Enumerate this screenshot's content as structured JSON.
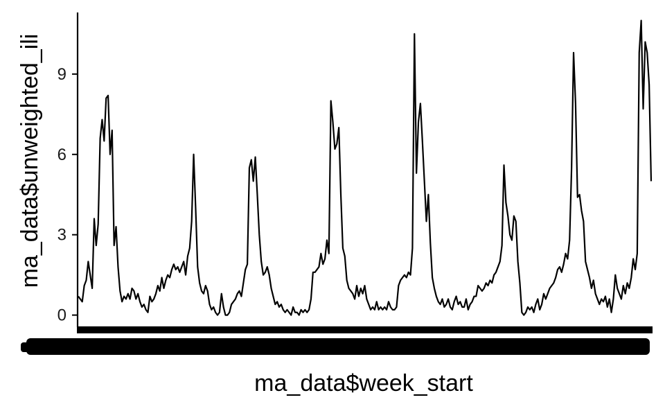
{
  "chart_data": {
    "type": "line",
    "title": "",
    "xlabel": "ma_data$week_start",
    "ylabel": "ma_data$unweighted_ili",
    "ylim": [
      -0.45,
      11.3
    ],
    "yticks": [
      0,
      3,
      6,
      9
    ],
    "grid": false,
    "legend": "none",
    "x_tick_labels_note": "x-axis tick labels are densely overprinted and illegible",
    "series": [
      {
        "color": "#000000",
        "values": [
          0.7,
          0.6,
          0.5,
          1.1,
          1.3,
          2.0,
          1.5,
          1.0,
          3.6,
          2.6,
          3.4,
          6.6,
          7.3,
          6.5,
          8.1,
          8.2,
          6.0,
          6.9,
          2.6,
          3.3,
          1.8,
          0.9,
          0.5,
          0.7,
          0.6,
          0.8,
          0.6,
          1.0,
          0.9,
          0.6,
          0.8,
          0.5,
          0.3,
          0.4,
          0.2,
          0.1,
          0.7,
          0.5,
          0.6,
          0.8,
          1.1,
          0.9,
          1.4,
          1.0,
          1.3,
          1.5,
          1.4,
          1.7,
          1.9,
          1.7,
          1.8,
          1.6,
          1.8,
          2.0,
          1.5,
          2.2,
          2.5,
          3.5,
          6.0,
          4.0,
          1.8,
          1.2,
          0.9,
          0.8,
          1.1,
          0.9,
          0.4,
          0.2,
          0.3,
          0.1,
          0.0,
          0.1,
          0.8,
          0.3,
          0.0,
          0.0,
          0.1,
          0.4,
          0.5,
          0.6,
          0.8,
          0.9,
          0.7,
          1.2,
          1.7,
          1.9,
          5.5,
          5.8,
          5.0,
          5.9,
          4.5,
          3.0,
          2.0,
          1.5,
          1.6,
          1.8,
          1.5,
          1.0,
          0.7,
          0.4,
          0.5,
          0.3,
          0.4,
          0.2,
          0.1,
          0.2,
          0.1,
          0.0,
          0.3,
          0.1,
          0.1,
          0.0,
          0.2,
          0.1,
          0.2,
          0.1,
          0.2,
          0.6,
          1.6,
          1.6,
          1.7,
          1.8,
          2.3,
          1.9,
          2.1,
          2.8,
          2.3,
          8.0,
          7.2,
          6.2,
          6.4,
          7.0,
          4.5,
          2.5,
          2.2,
          1.3,
          1.0,
          0.9,
          0.8,
          0.6,
          1.1,
          0.7,
          1.0,
          0.8,
          1.1,
          0.6,
          0.4,
          0.2,
          0.3,
          0.2,
          0.5,
          0.2,
          0.3,
          0.2,
          0.3,
          0.2,
          0.5,
          0.3,
          0.2,
          0.2,
          0.3,
          1.1,
          1.3,
          1.4,
          1.5,
          1.4,
          1.6,
          1.5,
          2.5,
          10.5,
          5.3,
          7.2,
          7.9,
          6.5,
          5.0,
          3.5,
          4.5,
          2.7,
          1.4,
          1.0,
          0.7,
          0.5,
          0.4,
          0.6,
          0.3,
          0.4,
          0.6,
          0.3,
          0.2,
          0.5,
          0.7,
          0.4,
          0.5,
          0.3,
          0.3,
          0.6,
          0.2,
          0.4,
          0.5,
          0.7,
          0.7,
          1.1,
          1.0,
          0.9,
          1.0,
          1.2,
          1.1,
          1.3,
          1.2,
          1.5,
          1.6,
          1.8,
          2.0,
          2.6,
          5.6,
          4.2,
          3.7,
          3.0,
          2.8,
          3.7,
          3.5,
          2.0,
          1.2,
          0.1,
          0.0,
          0.1,
          0.3,
          0.2,
          0.3,
          0.1,
          0.4,
          0.6,
          0.2,
          0.4,
          0.8,
          0.6,
          0.8,
          1.0,
          1.1,
          1.2,
          1.4,
          1.7,
          1.8,
          1.6,
          1.9,
          2.3,
          2.1,
          2.8,
          5.5,
          9.8,
          7.9,
          4.4,
          4.5,
          3.9,
          3.5,
          2.0,
          1.7,
          1.4,
          1.0,
          1.3,
          0.8,
          0.6,
          0.4,
          0.6,
          0.5,
          0.7,
          0.3,
          0.6,
          0.1,
          0.6,
          1.5,
          1.0,
          0.8,
          0.6,
          1.1,
          0.8,
          1.2,
          1.0,
          1.4,
          2.1,
          1.7,
          2.3,
          9.8,
          11.0,
          7.7,
          10.2,
          9.8,
          8.6,
          5.0
        ]
      }
    ]
  }
}
